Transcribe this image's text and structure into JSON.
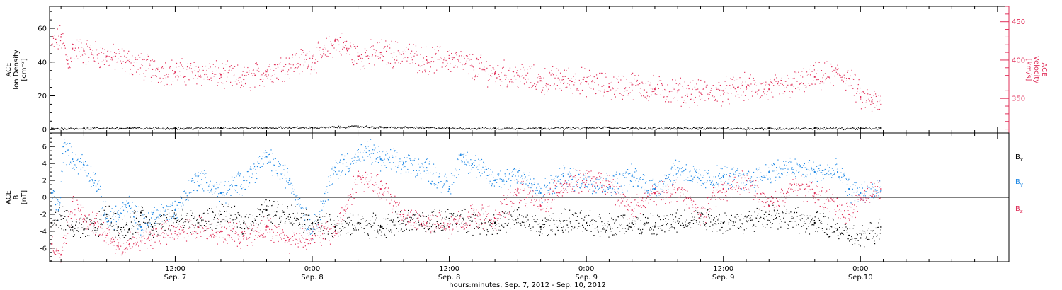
{
  "colors": {
    "axes": "#000000",
    "velocity": "#e0305a",
    "by": "#1e88e5",
    "bz": "#e0305a",
    "bx": "#000000",
    "background": "#ffffff"
  },
  "x_axis": {
    "title": "hours:minutes, Sep.  7, 2012 - Sep. 10, 2012",
    "ticks": [
      {
        "t": 12,
        "time": "12:00",
        "date": "Sep. 7"
      },
      {
        "t": 24,
        "time": "0:00",
        "date": "Sep. 8"
      },
      {
        "t": 36,
        "time": "12:00",
        "date": "Sep. 8"
      },
      {
        "t": 48,
        "time": "0:00",
        "date": "Sep. 9"
      },
      {
        "t": 60,
        "time": "12:00",
        "date": "Sep. 9"
      },
      {
        "t": 72,
        "time": "0:00",
        "date": "Sep.10"
      }
    ]
  },
  "chart_data": [
    {
      "type": "scatter",
      "x_unit": "hours since Sep. 7 0:00 UT",
      "xlim": [
        1.0,
        85.0
      ],
      "left_axis": {
        "label_lines": [
          "ACE",
          "Ion Density",
          "[cm⁻³]"
        ],
        "ylim": [
          -2,
          73
        ],
        "ticks": [
          0,
          20,
          40,
          60
        ]
      },
      "right_axis": {
        "label_lines": [
          "ACE",
          "Velocity",
          "[km/s]"
        ],
        "ylim": [
          305,
          470
        ],
        "ticks": [
          350,
          400,
          450
        ]
      },
      "series": [
        {
          "name": "Ion Density",
          "axis": "left",
          "points": [
            [
              1.2,
              0.8
            ],
            [
              4,
              0.9
            ],
            [
              8,
              1.0
            ],
            [
              12,
              0.9
            ],
            [
              16,
              1.1
            ],
            [
              20,
              1.2
            ],
            [
              22,
              1.4
            ],
            [
              24,
              1.2
            ],
            [
              28,
              2.0
            ],
            [
              30,
              1.5
            ],
            [
              34,
              1.3
            ],
            [
              36,
              1.0
            ],
            [
              40,
              0.8
            ],
            [
              44,
              1.0
            ],
            [
              48,
              1.1
            ],
            [
              50,
              1.4
            ],
            [
              52,
              1.0
            ],
            [
              56,
              0.9
            ],
            [
              60,
              0.9
            ],
            [
              64,
              0.8
            ],
            [
              68,
              0.9
            ],
            [
              72,
              0.8
            ],
            [
              73.8,
              0.9
            ]
          ]
        },
        {
          "name": "Velocity",
          "axis": "right",
          "points": [
            [
              1.2,
              420
            ],
            [
              2,
              430
            ],
            [
              2.6,
              395
            ],
            [
              3,
              415
            ],
            [
              4,
              412
            ],
            [
              6,
              405
            ],
            [
              8,
              398
            ],
            [
              10,
              388
            ],
            [
              12,
              384
            ],
            [
              14,
              385
            ],
            [
              16,
              381
            ],
            [
              18,
              375
            ],
            [
              19,
              380
            ],
            [
              20,
              385
            ],
            [
              22,
              395
            ],
            [
              24,
              402
            ],
            [
              25,
              408
            ],
            [
              26,
              425
            ],
            [
              27,
              415
            ],
            [
              28,
              405
            ],
            [
              30,
              410
            ],
            [
              32,
              408
            ],
            [
              34,
              400
            ],
            [
              36,
              402
            ],
            [
              38,
              392
            ],
            [
              40,
              383
            ],
            [
              42,
              380
            ],
            [
              44,
              373
            ],
            [
              46,
              375
            ],
            [
              48,
              372
            ],
            [
              50,
              365
            ],
            [
              52,
              368
            ],
            [
              54,
              362
            ],
            [
              56,
              360
            ],
            [
              58,
              357
            ],
            [
              60,
              360
            ],
            [
              62,
              365
            ],
            [
              64,
              362
            ],
            [
              66,
              368
            ],
            [
              68,
              378
            ],
            [
              70,
              382
            ],
            [
              71,
              376
            ],
            [
              72,
              352
            ],
            [
              73,
              346
            ],
            [
              73.8,
              342
            ]
          ]
        }
      ]
    },
    {
      "type": "scatter",
      "x_unit": "hours since Sep. 7 0:00 UT",
      "xlim": [
        1.0,
        85.0
      ],
      "left_axis": {
        "label_lines": [
          "ACE",
          "B",
          "[nT]"
        ],
        "ylim": [
          -7.6,
          7.6
        ],
        "ticks": [
          -6,
          -4,
          -2,
          0,
          2,
          4,
          6
        ]
      },
      "zero_line": true,
      "legend": {
        "placement": "right",
        "entries": [
          "Bx",
          "By",
          "Bz"
        ]
      },
      "series": [
        {
          "name": "Bx",
          "points": [
            [
              1.2,
              -3.0
            ],
            [
              2,
              -2.2
            ],
            [
              3,
              -3.5
            ],
            [
              4,
              -3.8
            ],
            [
              5,
              -3.6
            ],
            [
              6,
              -2.0
            ],
            [
              7,
              -3.5
            ],
            [
              8,
              -3.8
            ],
            [
              9,
              -1.8
            ],
            [
              10,
              -3.5
            ],
            [
              12,
              -2.5
            ],
            [
              14,
              -3.0
            ],
            [
              16,
              -2.0
            ],
            [
              18,
              -3.0
            ],
            [
              20,
              -1.5
            ],
            [
              22,
              -2.0
            ],
            [
              24,
              -3.0
            ],
            [
              26,
              -3.5
            ],
            [
              28,
              -3.0
            ],
            [
              30,
              -3.5
            ],
            [
              32,
              -2.8
            ],
            [
              34,
              -3.0
            ],
            [
              36,
              -2.5
            ],
            [
              38,
              -2.8
            ],
            [
              40,
              -3.0
            ],
            [
              42,
              -2.5
            ],
            [
              44,
              -3.5
            ],
            [
              46,
              -2.8
            ],
            [
              48,
              -3.0
            ],
            [
              50,
              -3.2
            ],
            [
              52,
              -3.0
            ],
            [
              54,
              -3.4
            ],
            [
              56,
              -2.8
            ],
            [
              58,
              -2.2
            ],
            [
              60,
              -3.0
            ],
            [
              62,
              -2.8
            ],
            [
              64,
              -2.0
            ],
            [
              66,
              -2.5
            ],
            [
              68,
              -3.0
            ],
            [
              70,
              -3.8
            ],
            [
              71,
              -4.5
            ],
            [
              72,
              -4.8
            ],
            [
              73.8,
              -3.5
            ]
          ]
        },
        {
          "name": "By",
          "points": [
            [
              1.2,
              0.5
            ],
            [
              1.8,
              -1.5
            ],
            [
              2.2,
              6.0
            ],
            [
              3,
              4.5
            ],
            [
              4,
              3.8
            ],
            [
              5,
              2.0
            ],
            [
              6,
              -2.5
            ],
            [
              7,
              -2.0
            ],
            [
              8,
              -1.0
            ],
            [
              9,
              -3.5
            ],
            [
              10,
              -2.0
            ],
            [
              12,
              -1.5
            ],
            [
              14,
              2.5
            ],
            [
              16,
              0.5
            ],
            [
              18,
              2.0
            ],
            [
              20,
              4.8
            ],
            [
              22,
              2.0
            ],
            [
              24,
              -4.0
            ],
            [
              26,
              3.5
            ],
            [
              28,
              4.8
            ],
            [
              29,
              5.5
            ],
            [
              30,
              4.5
            ],
            [
              32,
              4.0
            ],
            [
              34,
              3.5
            ],
            [
              36,
              1.0
            ],
            [
              37,
              5.0
            ],
            [
              38,
              4.0
            ],
            [
              40,
              2.0
            ],
            [
              42,
              3.0
            ],
            [
              44,
              0.5
            ],
            [
              46,
              2.5
            ],
            [
              48,
              2.0
            ],
            [
              50,
              1.5
            ],
            [
              52,
              2.5
            ],
            [
              54,
              1.0
            ],
            [
              56,
              3.5
            ],
            [
              58,
              2.0
            ],
            [
              60,
              2.5
            ],
            [
              62,
              2.0
            ],
            [
              64,
              3.0
            ],
            [
              66,
              3.5
            ],
            [
              68,
              3.0
            ],
            [
              70,
              3.0
            ],
            [
              71,
              1.0
            ],
            [
              72,
              0.5
            ],
            [
              73.8,
              0.8
            ]
          ]
        },
        {
          "name": "Bz",
          "points": [
            [
              1.2,
              -5.5
            ],
            [
              2,
              -6.8
            ],
            [
              3,
              -0.5
            ],
            [
              4,
              -2.5
            ],
            [
              5,
              -3.0
            ],
            [
              6,
              -4.5
            ],
            [
              7,
              -5.8
            ],
            [
              8,
              -5.5
            ],
            [
              10,
              -4.5
            ],
            [
              12,
              -4.0
            ],
            [
              14,
              -3.5
            ],
            [
              16,
              -4.0
            ],
            [
              18,
              -4.5
            ],
            [
              20,
              -3.5
            ],
            [
              22,
              -5.0
            ],
            [
              24,
              -4.5
            ],
            [
              26,
              -4.0
            ],
            [
              28,
              2.5
            ],
            [
              30,
              1.0
            ],
            [
              32,
              -2.0
            ],
            [
              34,
              -3.0
            ],
            [
              36,
              -3.5
            ],
            [
              38,
              -2.0
            ],
            [
              40,
              -2.5
            ],
            [
              42,
              1.0
            ],
            [
              44,
              -1.0
            ],
            [
              46,
              1.5
            ],
            [
              48,
              2.0
            ],
            [
              50,
              1.5
            ],
            [
              52,
              -1.5
            ],
            [
              54,
              0.5
            ],
            [
              56,
              1.0
            ],
            [
              58,
              -2.0
            ],
            [
              60,
              1.0
            ],
            [
              62,
              2.0
            ],
            [
              64,
              -1.0
            ],
            [
              66,
              1.5
            ],
            [
              68,
              0.5
            ],
            [
              70,
              -1.0
            ],
            [
              71,
              -2.0
            ],
            [
              72,
              0.0
            ],
            [
              73.8,
              1.0
            ]
          ]
        }
      ]
    }
  ]
}
